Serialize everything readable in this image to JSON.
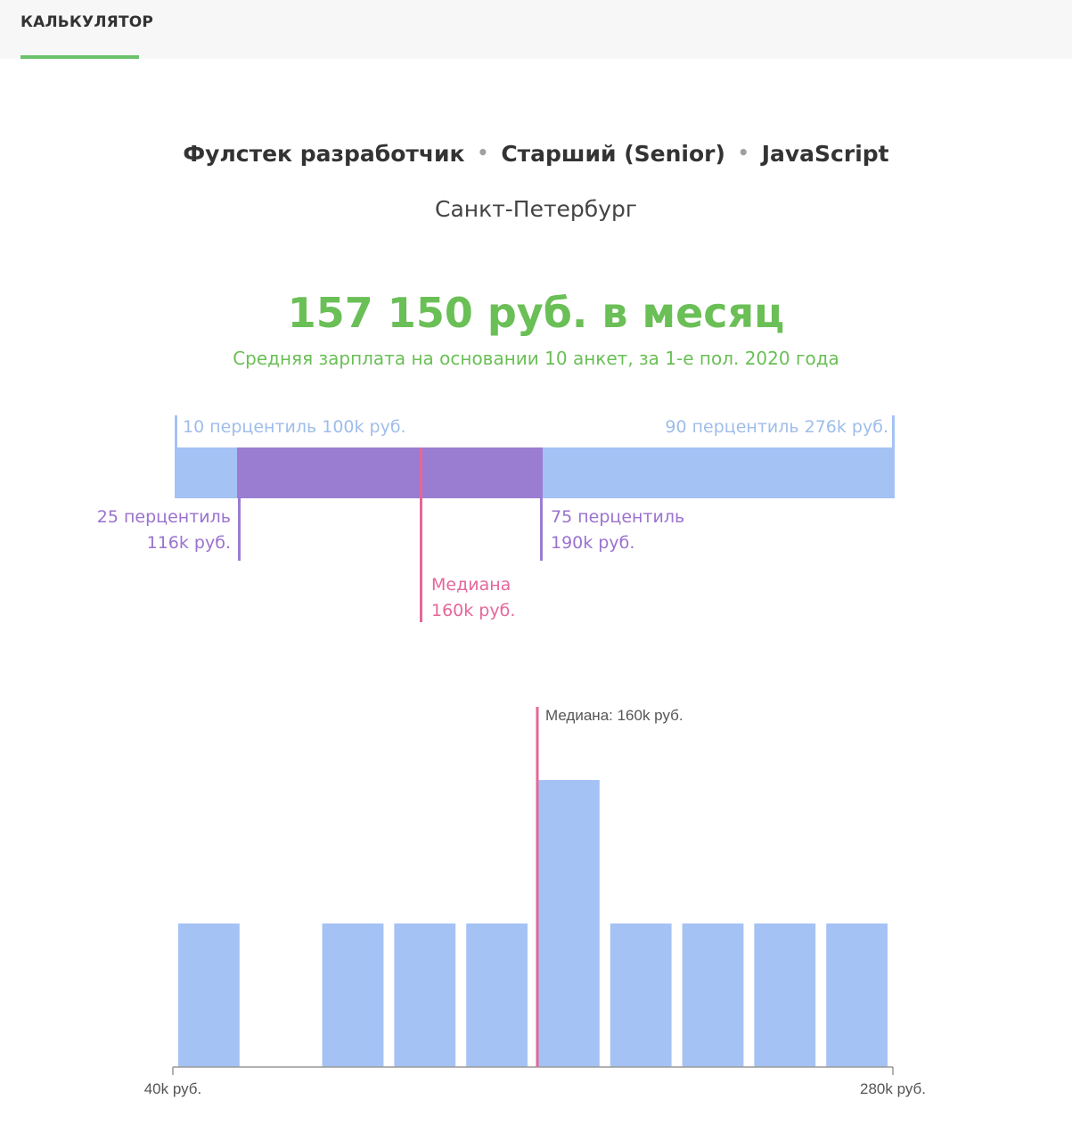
{
  "header": {
    "tab_label": "КАЛЬКУЛЯТОР"
  },
  "filters": {
    "role": "Фулстек разработчик",
    "separator": "•",
    "level": "Старший (Senior)",
    "language": "JavaScript",
    "city": "Санкт-Петербург"
  },
  "summary": {
    "salary": "157 150 руб. в месяц",
    "subtitle": "Средняя зарплата на основании 10 анкет, за 1-е пол. 2020 года"
  },
  "percentiles": {
    "p10_label": "10 перцентиль 100k руб.",
    "p90_label": "90 перцентиль 276k руб.",
    "p25_title": "25 перцентиль",
    "p25_value": "116k руб.",
    "p75_title": "75 перцентиль",
    "p75_value": "190k руб.",
    "median_title": "Медиана",
    "median_value": "160k руб.",
    "colors": {
      "outer": "#a4c2f4",
      "inner": "#9a7dd1",
      "median": "#e5679a"
    }
  },
  "chart_data": {
    "type": "bar",
    "x_min": 40,
    "x_max": 280,
    "x_tick_labels": [
      "40k руб.",
      "280k руб."
    ],
    "bins": [
      {
        "from": 40,
        "to": 64,
        "count": 1
      },
      {
        "from": 64,
        "to": 88,
        "count": 0
      },
      {
        "from": 88,
        "to": 112,
        "count": 1
      },
      {
        "from": 112,
        "to": 136,
        "count": 1
      },
      {
        "from": 136,
        "to": 160,
        "count": 1
      },
      {
        "from": 160,
        "to": 184,
        "count": 2
      },
      {
        "from": 184,
        "to": 208,
        "count": 1
      },
      {
        "from": 208,
        "to": 232,
        "count": 1
      },
      {
        "from": 232,
        "to": 256,
        "count": 1
      },
      {
        "from": 256,
        "to": 280,
        "count": 1
      }
    ],
    "median": 160,
    "median_label": "Медиана: 160k руб.",
    "bar_color": "#a4c2f4",
    "median_color": "#e5679a"
  }
}
